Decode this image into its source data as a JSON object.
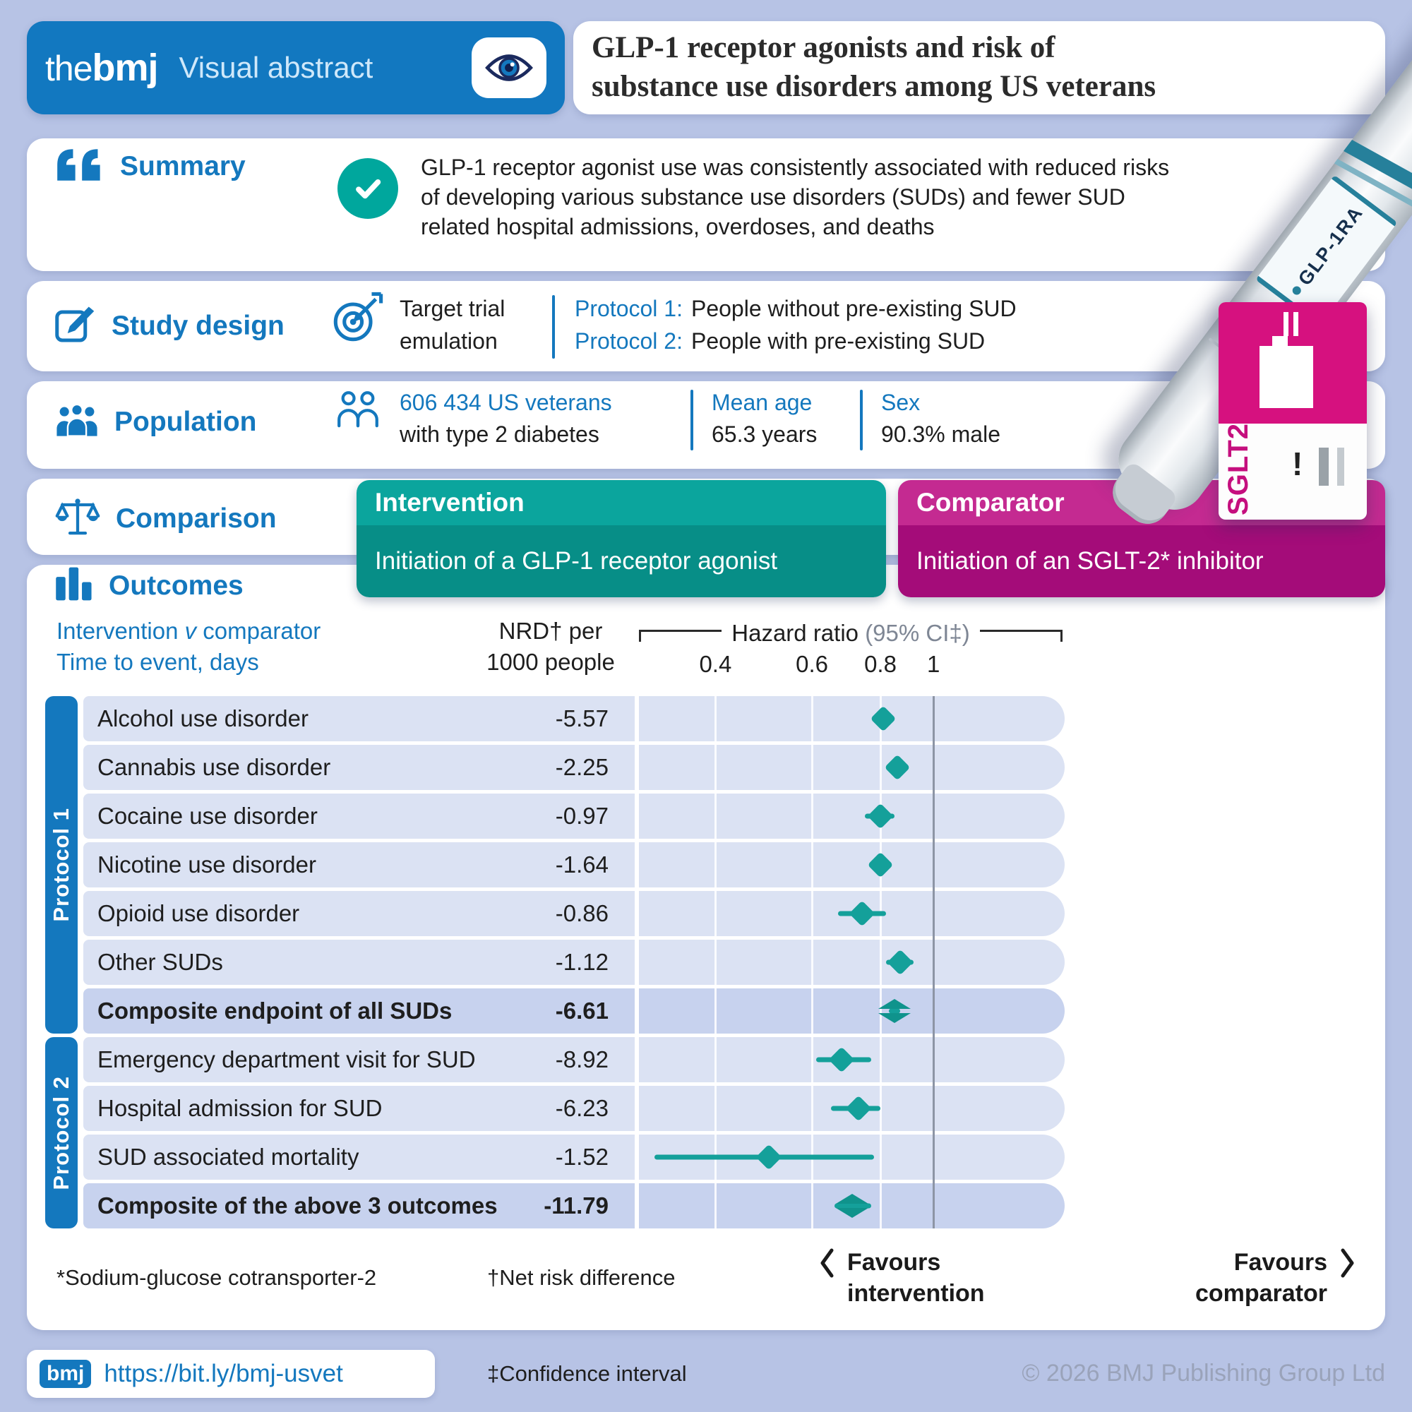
{
  "header": {
    "logo_the": "the",
    "logo_bmj": "bmj",
    "logo_tagline": "Visual abstract",
    "title_line1": "GLP-1 receptor agonists and risk of",
    "title_line2": "substance use disorders among US veterans"
  },
  "summary": {
    "label": "Summary",
    "text": "GLP-1 receptor agonist use was consistently associated with reduced risks of developing various substance use disorders (SUDs) and fewer SUD related hospital admissions, overdoses, and deaths"
  },
  "study_design": {
    "label": "Study design",
    "method_line1": "Target trial",
    "method_line2": "emulation",
    "protocols": [
      {
        "label": "Protocol 1:",
        "text": "People without pre-existing SUD"
      },
      {
        "label": "Protocol 2:",
        "text": "People with pre-existing SUD"
      }
    ]
  },
  "population": {
    "label": "Population",
    "count_line1": "606 434 US veterans",
    "count_line2": "with type 2 diabetes",
    "age_label": "Mean age",
    "age_value": "65.3 years",
    "sex_label": "Sex",
    "sex_value": "90.3% male"
  },
  "comparison": {
    "label": "Comparison",
    "intervention_title": "Intervention",
    "intervention_text": "Initiation of a GLP-1 receptor agonist",
    "comparator_title": "Comparator",
    "comparator_text": "Initiation of an SGLT-2* inhibitor"
  },
  "pen_graphic": {
    "pen_label": "GLP-1RA",
    "box_label": "SGLT2",
    "box_mark": "!"
  },
  "outcomes_header": {
    "label": "Outcomes",
    "col_outcome_line1_pre": "Intervention",
    "col_outcome_line1_v": "v",
    "col_outcome_line1_post": "comparator",
    "col_outcome_line2": "Time to event, days",
    "col_nrd_line1": "NRD† per",
    "col_nrd_line2": "1000 people",
    "hr_label": "Hazard ratio",
    "hr_ci_label": "(95% CI‡)"
  },
  "chart_data": {
    "type": "forest",
    "title": "Intervention v comparator, time to event (days)",
    "x_axis": {
      "scale": "log",
      "min": 0.29,
      "max": 1.72,
      "ticks": [
        "0.4",
        "0.6",
        "0.8",
        "1"
      ],
      "reference_line": 1,
      "xlabel": "Hazard ratio (95% CI)"
    },
    "groups": [
      {
        "label": "Protocol 1",
        "rows": [
          {
            "outcome": "Alcohol use disorder",
            "nrd": "-5.57",
            "hr": 0.81,
            "ci_low": 0.79,
            "ci_high": 0.84,
            "bold": false,
            "composite": false
          },
          {
            "outcome": "Cannabis use disorder",
            "nrd": "-2.25",
            "hr": 0.86,
            "ci_low": 0.84,
            "ci_high": 0.89,
            "bold": false,
            "composite": false
          },
          {
            "outcome": "Cocaine use disorder",
            "nrd": "-0.97",
            "hr": 0.8,
            "ci_low": 0.75,
            "ci_high": 0.85,
            "bold": false,
            "composite": false
          },
          {
            "outcome": "Nicotine use disorder",
            "nrd": "-1.64",
            "hr": 0.8,
            "ci_low": 0.77,
            "ci_high": 0.84,
            "bold": false,
            "composite": false
          },
          {
            "outcome": "Opioid use disorder",
            "nrd": "-0.86",
            "hr": 0.74,
            "ci_low": 0.67,
            "ci_high": 0.82,
            "bold": false,
            "composite": false
          },
          {
            "outcome": "Other SUDs",
            "nrd": "-1.12",
            "hr": 0.87,
            "ci_low": 0.82,
            "ci_high": 0.92,
            "bold": false,
            "composite": false
          },
          {
            "outcome": "Composite endpoint of all SUDs",
            "nrd": "-6.61",
            "hr": 0.85,
            "ci_low": 0.83,
            "ci_high": 0.87,
            "bold": true,
            "composite": true
          }
        ]
      },
      {
        "label": "Protocol 2",
        "rows": [
          {
            "outcome": "Emergency department visit for SUD",
            "nrd": "-8.92",
            "hr": 0.68,
            "ci_low": 0.61,
            "ci_high": 0.77,
            "bold": false,
            "composite": false
          },
          {
            "outcome": "Hospital admission for SUD",
            "nrd": "-6.23",
            "hr": 0.73,
            "ci_low": 0.65,
            "ci_high": 0.8,
            "bold": false,
            "composite": false
          },
          {
            "outcome": "SUD associated mortality",
            "nrd": "-1.52",
            "hr": 0.5,
            "ci_low": 0.31,
            "ci_high": 0.78,
            "bold": false,
            "composite": false
          },
          {
            "outcome": "Composite of the above 3 outcomes",
            "nrd": "-11.79",
            "hr": 0.71,
            "ci_low": 0.66,
            "ci_high": 0.77,
            "bold": true,
            "composite": true
          }
        ]
      }
    ]
  },
  "footnotes": {
    "note_sglt": "*Sodium-glucose cotransporter-2",
    "note_nrd": "†Net risk difference",
    "favours_left_line1": "Favours",
    "favours_left_line2": "intervention",
    "favours_right_line1": "Favours",
    "favours_right_line2": "comparator",
    "note_ci": "‡Confidence interval"
  },
  "footer": {
    "bmj_chip": "bmj",
    "url": "https://bit.ly/bmj-usvet",
    "copyright": "© 2026 BMJ Publishing Group Ltd"
  },
  "colors": {
    "bmj_blue": "#1478be",
    "teal_header": "#0ba59d",
    "teal_body": "#078e87",
    "magenta_header": "#c42a91",
    "magenta_body": "#a40c79",
    "marker_teal": "#14a09a",
    "background": "#b7c3e5"
  }
}
